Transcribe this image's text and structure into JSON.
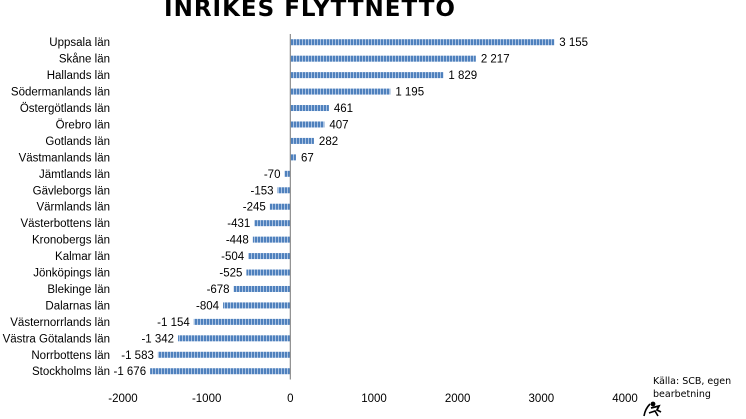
{
  "chart_data": {
    "type": "bar",
    "orientation": "horizontal",
    "title": "INRIKES FLYTTNETTO",
    "categories": [
      "Uppsala län",
      "Skåne län",
      "Hallands län",
      "Södermanlands län",
      "Östergötlands län",
      "Örebro län",
      "Gotlands län",
      "Västmanlands län",
      "Jämtlands län",
      "Gävleborgs län",
      "Värmlands län",
      "Västerbottens län",
      "Kronobergs län",
      "Kalmar län",
      "Jönköpings län",
      "Blekinge län",
      "Dalarnas län",
      "Västernorrlands län",
      "Västra Götalands län",
      "Norrbottens län",
      "Stockholms län"
    ],
    "values": [
      3155,
      2217,
      1829,
      1195,
      461,
      407,
      282,
      67,
      -70,
      -153,
      -245,
      -431,
      -448,
      -504,
      -525,
      -678,
      -804,
      -1154,
      -1342,
      -1583,
      -1676
    ],
    "value_labels": [
      "3 155",
      "2 217",
      "1 829",
      "1 195",
      "461",
      "407",
      "282",
      "67",
      "-70",
      "-153",
      "-245",
      "-431",
      "-448",
      "-504",
      "-525",
      "-678",
      "-804",
      "-1 154",
      "-1 342",
      "-1 583",
      "-1 676"
    ],
    "xlim": [
      -2000,
      4000
    ],
    "x_ticks": [
      -2000,
      -1000,
      0,
      1000,
      2000,
      3000,
      4000
    ],
    "x_tick_labels": [
      "-2000",
      "-1000",
      "0",
      "1000",
      "2000",
      "3000",
      "4000"
    ],
    "grid": false,
    "xlabel": "",
    "ylabel": "",
    "bar_color": "#4f81bd"
  },
  "source_note": {
    "line1": "Källa: SCB, egen",
    "line2": "bearbetning"
  }
}
